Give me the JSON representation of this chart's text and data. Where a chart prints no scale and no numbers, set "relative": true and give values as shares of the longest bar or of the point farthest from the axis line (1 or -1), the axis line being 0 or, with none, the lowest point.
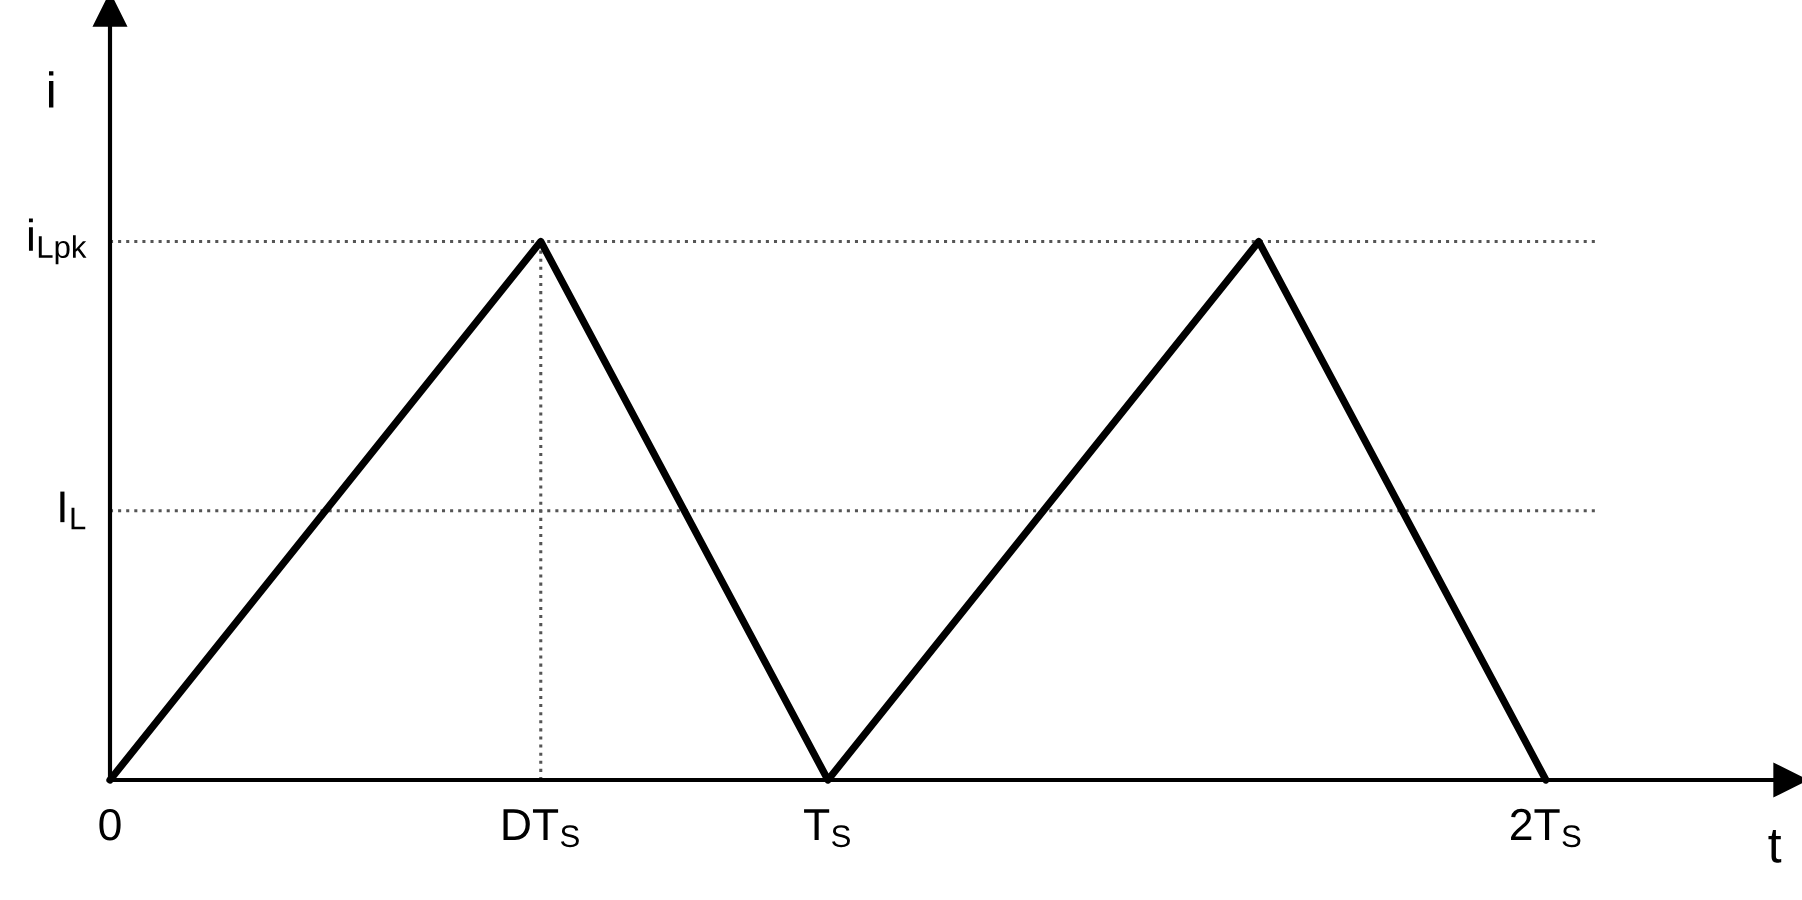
{
  "chart_data": {
    "type": "line",
    "xlabel": "t",
    "ylabel": "i",
    "relative": true,
    "series": [
      {
        "x": [
          0,
          0.6,
          1,
          1.6,
          2
        ],
        "values": [
          0,
          1,
          0,
          1,
          0
        ],
        "color": "#000000",
        "line_style": "solid"
      },
      {
        "name": "i$_{Lpk}$",
        "x": [
          0,
          2.07
        ],
        "values": [
          1,
          1
        ],
        "color": "#555555",
        "line_style": "dotted"
      },
      {
        "name": "I$_{L}$",
        "x": [
          0,
          2.07
        ],
        "values": [
          0.5,
          0.5
        ],
        "color": "#555555",
        "line_style": "dotted"
      }
    ],
    "ref_lines": [
      {
        "axis": "x",
        "value": 0.6,
        "color": "#555555",
        "line_style": "dotted"
      }
    ],
    "xlim": [
      0,
      2.34
    ],
    "xticks": [
      0,
      {
        "value": 0.6,
        "label": "DT$_{S}$"
      },
      {
        "value": 1,
        "label": "T$_{S}$"
      },
      {
        "value": 2,
        "label": "2T$_{S}$"
      }
    ],
    "grid": false,
    "legend": false,
    "marker": "none"
  }
}
